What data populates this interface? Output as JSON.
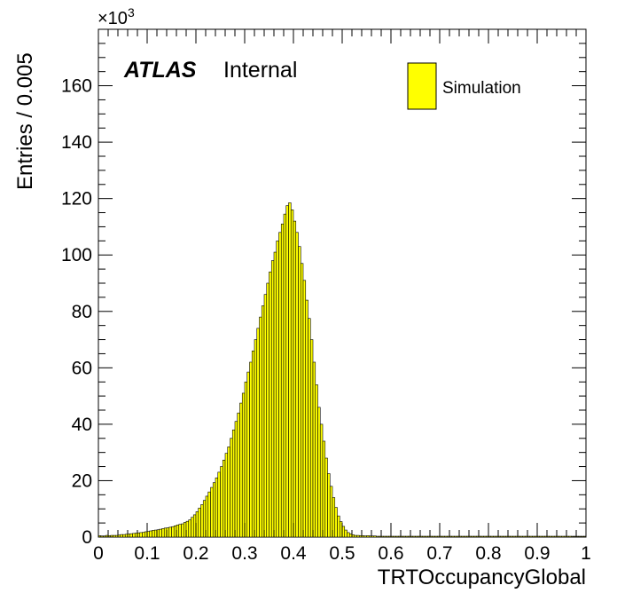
{
  "chart_data": {
    "type": "bar",
    "title": "",
    "xlabel": "TRTOccupancyGlobal",
    "ylabel": "Entries / 0.005",
    "y_multiplier": "×10",
    "y_multiplier_exp": "3",
    "xlim": [
      0,
      1
    ],
    "ylim": [
      0,
      180
    ],
    "grid": false,
    "legend_position": "top-right",
    "bin_width": 0.005,
    "x_ticks": [
      "0",
      "0.1",
      "0.2",
      "0.3",
      "0.4",
      "0.5",
      "0.6",
      "0.7",
      "0.8",
      "0.9",
      "1"
    ],
    "y_ticks": [
      "0",
      "20",
      "40",
      "60",
      "80",
      "100",
      "120",
      "140",
      "160"
    ],
    "series": [
      {
        "name": "Simulation",
        "color": "#ffff00",
        "edge_color": "#000000",
        "values": [
          0.5,
          0.4,
          0.4,
          0.6,
          0.5,
          0.6,
          0.6,
          0.6,
          0.7,
          0.9,
          0.9,
          1.0,
          1.1,
          1.2,
          1.3,
          1.4,
          1.5,
          1.6,
          1.7,
          1.9,
          2.0,
          2.2,
          2.4,
          2.5,
          2.6,
          2.8,
          3.0,
          3.2,
          3.3,
          3.5,
          3.7,
          4.0,
          4.3,
          4.5,
          4.7,
          5.2,
          5.6,
          6.1,
          7.0,
          7.9,
          9.0,
          10.3,
          11.5,
          13.0,
          14.5,
          16.0,
          17.6,
          19.3,
          21,
          23,
          25,
          27.3,
          29.7,
          32,
          35,
          38,
          41,
          44,
          47.5,
          51,
          55,
          58.5,
          62,
          66,
          70,
          74,
          78,
          82,
          86,
          90,
          94,
          98,
          101,
          105,
          108,
          111,
          114.5,
          117.5,
          118.5,
          116,
          112,
          108,
          103,
          97,
          91,
          84,
          77.5,
          70,
          62,
          54,
          46,
          40,
          34,
          28,
          22.5,
          18,
          14,
          10.5,
          7.5,
          5.5,
          3.8,
          2.5,
          1.6,
          1.1,
          0.8,
          0.6,
          0.6,
          0.5,
          0.5,
          0.4,
          0.5,
          0.4,
          0.4,
          0.4,
          0.3,
          0.3,
          0.3,
          0.3,
          0.3,
          0.3,
          0.3,
          0.3,
          0.3,
          0.3,
          0.3,
          0.3,
          0.3,
          0.3,
          0.3,
          0.3,
          0.3,
          0.3,
          0.3,
          0.3,
          0.3,
          0.3,
          0.3,
          0.3,
          0.3,
          0.3,
          0.3,
          0.3,
          0.3,
          0.3,
          0.3,
          0.3,
          0.3,
          0.3,
          0.3,
          0.3,
          0.3,
          0.3,
          0.3,
          0.3,
          0.3,
          0.3,
          0.3,
          0.3,
          0.3,
          0.3,
          0.3,
          0.3,
          0.3,
          0.3,
          0.3,
          0.3,
          0.3,
          0.3,
          0.3,
          0.3,
          0.3,
          0.3,
          0.3,
          0.3,
          0.3,
          0.3,
          0.3,
          0.3,
          0.3,
          0.3,
          0.3,
          0.3,
          0.3,
          0.3,
          0.3,
          0.3,
          0.3,
          0.3,
          0.3,
          0.3,
          0.3,
          0.3,
          0.3,
          0.3,
          0.3,
          0.3,
          0.3,
          0.3,
          0.3,
          0.3
        ]
      }
    ]
  },
  "labels": {
    "atlas": "ATLAS",
    "internal": "Internal",
    "legend_entry": "Simulation"
  }
}
